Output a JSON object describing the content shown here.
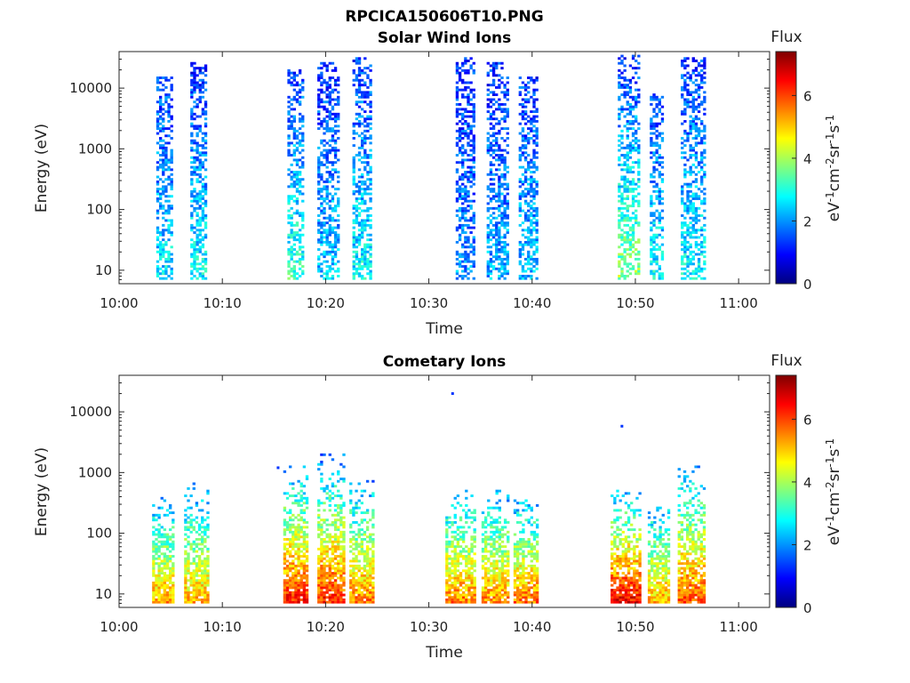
{
  "figure": {
    "title": "RPCICA150606T10.PNG"
  },
  "colors": {
    "jet_stops": [
      "#00007f",
      "#0000ff",
      "#007fff",
      "#00ffff",
      "#7fff7f",
      "#ffff00",
      "#ff7f00",
      "#ff0000",
      "#7f0000"
    ]
  },
  "chart_data": [
    {
      "type": "heatmap",
      "title": "Solar Wind Ions",
      "xlabel": "Time",
      "ylabel": "Energy (eV)",
      "x_ticks": [
        "10:00",
        "10:10",
        "10:20",
        "10:30",
        "10:40",
        "10:50",
        "11:00"
      ],
      "x_tick_minutes": [
        0,
        10,
        20,
        30,
        40,
        50,
        60
      ],
      "xlim_minutes": [
        0,
        63
      ],
      "y_ticks": [
        "10",
        "100",
        "1000",
        "10000"
      ],
      "y_tick_values": [
        10,
        100,
        1000,
        10000
      ],
      "ylim": [
        6,
        40000
      ],
      "yscale": "log",
      "colorbar": {
        "title": "Flux",
        "label": "eV-1cm-2sr-1s-1",
        "ticks": [
          "0",
          "2",
          "4",
          "6"
        ],
        "tick_values": [
          0,
          2,
          4,
          6
        ],
        "range": [
          0,
          7.4
        ]
      },
      "bursts": [
        {
          "t_start": 3.6,
          "t_end": 5.1,
          "e_min": 7,
          "e_max": 15000,
          "flux_low": 2.6,
          "flux_high": 1.3
        },
        {
          "t_start": 6.9,
          "t_end": 8.5,
          "e_min": 7,
          "e_max": 25000,
          "flux_low": 2.8,
          "flux_high": 1.2
        },
        {
          "t_start": 16.3,
          "t_end": 17.9,
          "e_min": 7,
          "e_max": 20000,
          "flux_low": 3.2,
          "flux_high": 1.3
        },
        {
          "t_start": 19.2,
          "t_end": 21.3,
          "e_min": 7,
          "e_max": 25000,
          "flux_low": 2.4,
          "flux_high": 1.2
        },
        {
          "t_start": 22.6,
          "t_end": 24.4,
          "e_min": 7,
          "e_max": 30000,
          "flux_low": 2.8,
          "flux_high": 1.3
        },
        {
          "t_start": 32.6,
          "t_end": 34.3,
          "e_min": 7,
          "e_max": 30000,
          "flux_low": 2.0,
          "flux_high": 1.2
        },
        {
          "t_start": 35.6,
          "t_end": 37.6,
          "e_min": 7,
          "e_max": 25000,
          "flux_low": 2.2,
          "flux_high": 1.2
        },
        {
          "t_start": 38.7,
          "t_end": 40.4,
          "e_min": 7,
          "e_max": 15000,
          "flux_low": 2.4,
          "flux_high": 1.3
        },
        {
          "t_start": 48.3,
          "t_end": 50.2,
          "e_min": 7,
          "e_max": 35000,
          "flux_low": 3.8,
          "flux_high": 1.2
        },
        {
          "t_start": 51.4,
          "t_end": 52.6,
          "e_min": 7,
          "e_max": 8000,
          "flux_low": 2.8,
          "flux_high": 1.3
        },
        {
          "t_start": 54.4,
          "t_end": 56.6,
          "e_min": 7,
          "e_max": 30000,
          "flux_low": 2.8,
          "flux_high": 1.3
        }
      ]
    },
    {
      "type": "heatmap",
      "title": "Cometary Ions",
      "xlabel": "Time",
      "ylabel": "Energy (eV)",
      "x_ticks": [
        "10:00",
        "10:10",
        "10:20",
        "10:30",
        "10:40",
        "10:50",
        "11:00"
      ],
      "x_tick_minutes": [
        0,
        10,
        20,
        30,
        40,
        50,
        60
      ],
      "xlim_minutes": [
        0,
        63
      ],
      "y_ticks": [
        "10",
        "100",
        "1000",
        "10000"
      ],
      "y_tick_values": [
        10,
        100,
        1000,
        10000
      ],
      "ylim": [
        6,
        40000
      ],
      "yscale": "log",
      "colorbar": {
        "title": "Flux",
        "label": "eV-1cm-2sr-1s-1",
        "ticks": [
          "0",
          "2",
          "4",
          "6"
        ],
        "tick_values": [
          0,
          2,
          4,
          6
        ],
        "range": [
          0,
          7.4
        ]
      },
      "bursts": [
        {
          "t_start": 3.2,
          "t_end": 5.1,
          "e_min": 7,
          "e_max": 400,
          "flux_low": 5.3,
          "flux_high": 2.0
        },
        {
          "t_start": 6.3,
          "t_end": 8.5,
          "e_min": 7,
          "e_max": 700,
          "flux_low": 5.2,
          "flux_high": 1.8
        },
        {
          "t_start": 15.9,
          "t_end": 18.2,
          "e_min": 7,
          "e_max": 1200,
          "flux_low": 6.3,
          "flux_high": 2.0
        },
        {
          "t_start": 19.2,
          "t_end": 21.8,
          "e_min": 7,
          "e_max": 2000,
          "flux_low": 6.2,
          "flux_high": 1.8
        },
        {
          "t_start": 22.3,
          "t_end": 24.6,
          "e_min": 7,
          "e_max": 700,
          "flux_low": 5.6,
          "flux_high": 2.0
        },
        {
          "t_start": 31.6,
          "t_end": 34.4,
          "e_min": 7,
          "e_max": 500,
          "flux_low": 5.6,
          "flux_high": 2.0
        },
        {
          "t_start": 35.1,
          "t_end": 37.6,
          "e_min": 7,
          "e_max": 500,
          "flux_low": 5.5,
          "flux_high": 2.0
        },
        {
          "t_start": 38.2,
          "t_end": 40.6,
          "e_min": 7,
          "e_max": 400,
          "flux_low": 5.7,
          "flux_high": 2.0
        },
        {
          "t_start": 47.6,
          "t_end": 50.4,
          "e_min": 7,
          "e_max": 600,
          "flux_low": 6.6,
          "flux_high": 2.0
        },
        {
          "t_start": 51.2,
          "t_end": 53.3,
          "e_min": 7,
          "e_max": 300,
          "flux_low": 5.2,
          "flux_high": 2.2
        },
        {
          "t_start": 54.1,
          "t_end": 56.6,
          "e_min": 7,
          "e_max": 1300,
          "flux_low": 5.9,
          "flux_high": 2.0
        }
      ],
      "isolated_points": [
        {
          "t": 32.3,
          "e": 20000
        },
        {
          "t": 48.7,
          "e": 5800
        },
        {
          "t": 15.4,
          "e": 1200
        }
      ]
    }
  ]
}
